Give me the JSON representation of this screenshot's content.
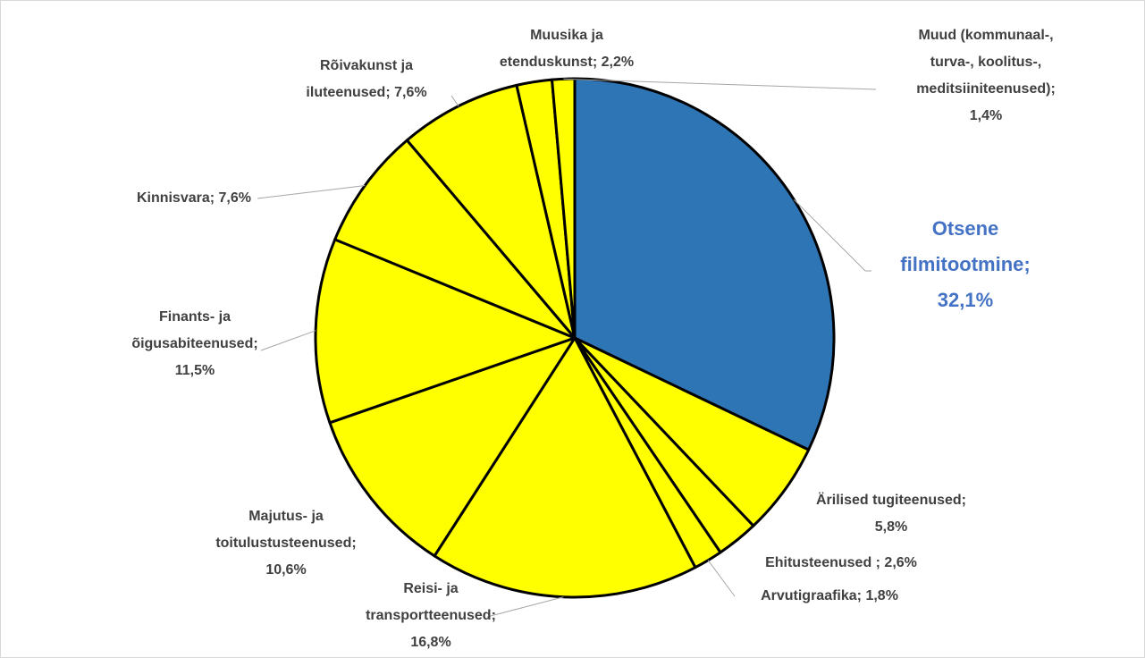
{
  "chart_data": {
    "type": "pie",
    "values": [
      32.1,
      5.8,
      2.6,
      1.8,
      16.8,
      10.6,
      11.5,
      7.6,
      7.6,
      2.2,
      1.4
    ],
    "data_labels": [
      [
        "Otsene",
        "filmitootmine;",
        "32,1%"
      ],
      [
        "Ärilised tugiteenused;",
        "5,8%"
      ],
      [
        "Ehitusteenused ; 2,6%"
      ],
      [
        "Arvutigraafika; 1,8%"
      ],
      [
        "Reisi- ja",
        "transportteenused;",
        "16,8%"
      ],
      [
        "Majutus- ja",
        "toitulustusteenused;",
        "10,6%"
      ],
      [
        "Finants- ja",
        "õigusabiteenused;",
        "11,5%"
      ],
      [
        "Kinnisvara; 7,6%"
      ],
      [
        "Rõivakunst ja",
        "iluteenused; 7,6%"
      ],
      [
        "Muusika ja",
        "etenduskunst; 2,2%"
      ],
      [
        "Muud (kommunaal-,",
        "turva-, koolitus-,",
        "meditsiiniteenused);",
        "1,4%"
      ]
    ],
    "colors": [
      "#2e75b6",
      "#ffff00",
      "#ffff00",
      "#ffff00",
      "#ffff00",
      "#ffff00",
      "#ffff00",
      "#ffff00",
      "#ffff00",
      "#ffff00",
      "#ffff00"
    ]
  }
}
